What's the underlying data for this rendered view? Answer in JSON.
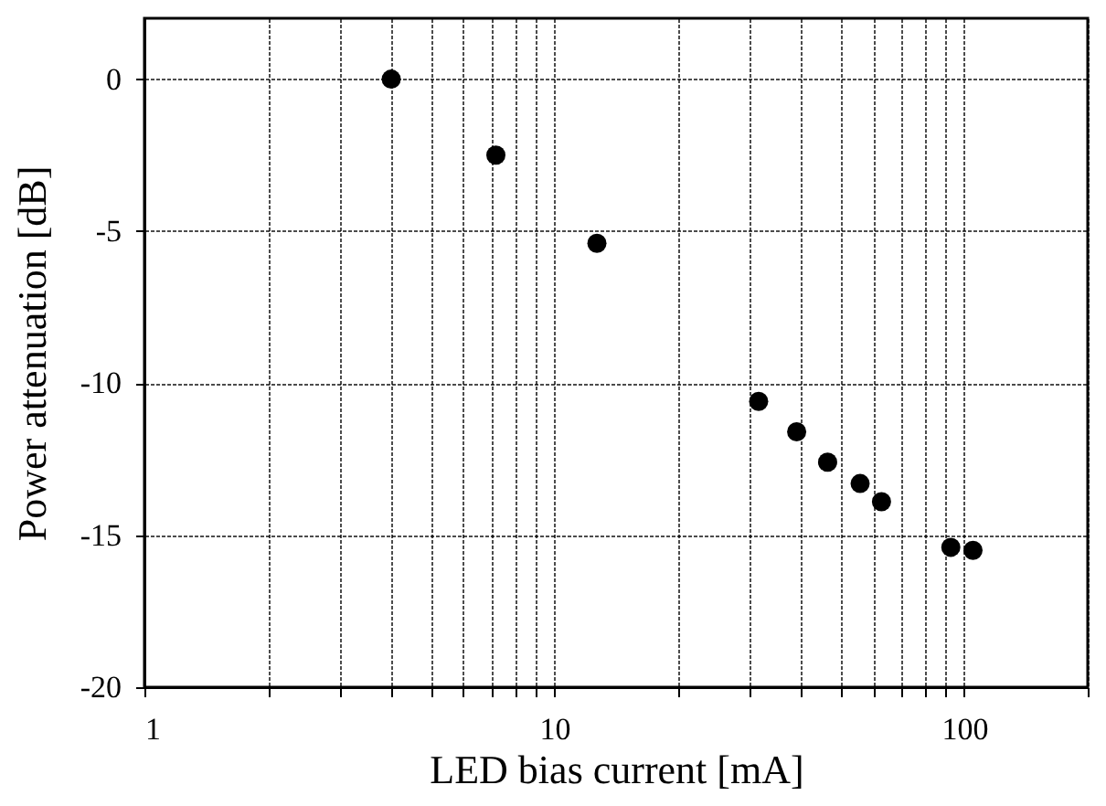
{
  "chart_data": {
    "type": "scatter",
    "xlabel": "LED bias current [mA]",
    "ylabel": "Power attenuation [dB]",
    "log": "x",
    "x": [
      4,
      7.2,
      12.7,
      31.5,
      39,
      46.4,
      55.7,
      62.8,
      92.7,
      105
    ],
    "series": [
      {
        "color": "#000000",
        "values": [
          0,
          -2.5,
          -5.4,
          -10.6,
          -11.6,
          -12.6,
          -13.3,
          -13.9,
          -15.4,
          -15.5
        ]
      }
    ],
    "xlim": [
      1,
      200
    ],
    "xticks": [
      1,
      {
        "value": 2,
        "label": null
      },
      {
        "value": 3,
        "label": null
      },
      {
        "value": 4,
        "label": null
      },
      {
        "value": 5,
        "label": null
      },
      {
        "value": 6,
        "label": null
      },
      {
        "value": 7,
        "label": null
      },
      {
        "value": 8,
        "label": null
      },
      {
        "value": 9,
        "label": null
      },
      10,
      {
        "value": 20,
        "label": null
      },
      {
        "value": 30,
        "label": null
      },
      {
        "value": 40,
        "label": null
      },
      {
        "value": 50,
        "label": null
      },
      {
        "value": 60,
        "label": null
      },
      {
        "value": 70,
        "label": null
      },
      {
        "value": 80,
        "label": null
      },
      {
        "value": 90,
        "label": null
      },
      100,
      {
        "value": 200,
        "label": null
      }
    ],
    "ylim": [
      -20,
      2
    ],
    "yticks": [
      -20,
      -15,
      -10,
      -5,
      0
    ],
    "grid": true,
    "marker": "circle"
  }
}
